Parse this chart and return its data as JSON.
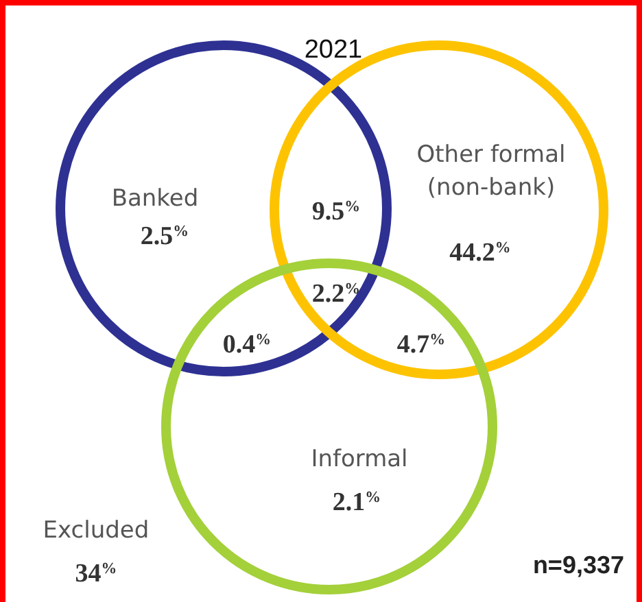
{
  "chart_data": {
    "type": "other",
    "title": "2021",
    "categories": [
      "Banked",
      "Other formal (non-bank)",
      "Informal",
      "Excluded"
    ],
    "values": [
      2.5,
      44.2,
      2.1,
      34
    ],
    "value_labels": [
      "2.5$^{%}$",
      "44.2$^{%}$",
      "2.1$^{%}$",
      "34$^{%}$"
    ],
    "series": [
      {
        "color": "#2e3192",
        "values": [
          null,
          null,
          null,
          null
        ]
      },
      {
        "color": "#fdc300",
        "values": [
          null,
          null,
          null,
          null
        ]
      },
      {
        "color": "#a4d03a",
        "values": [
          null,
          null,
          null,
          null
        ]
      }
    ],
    "data_labels": true,
    "annotations": [
      "9.5$^{%}$",
      "2.2$^{%}$",
      "0.4$^{%}$",
      "4.7$^{%}$",
      "n=9,337"
    ]
  }
}
